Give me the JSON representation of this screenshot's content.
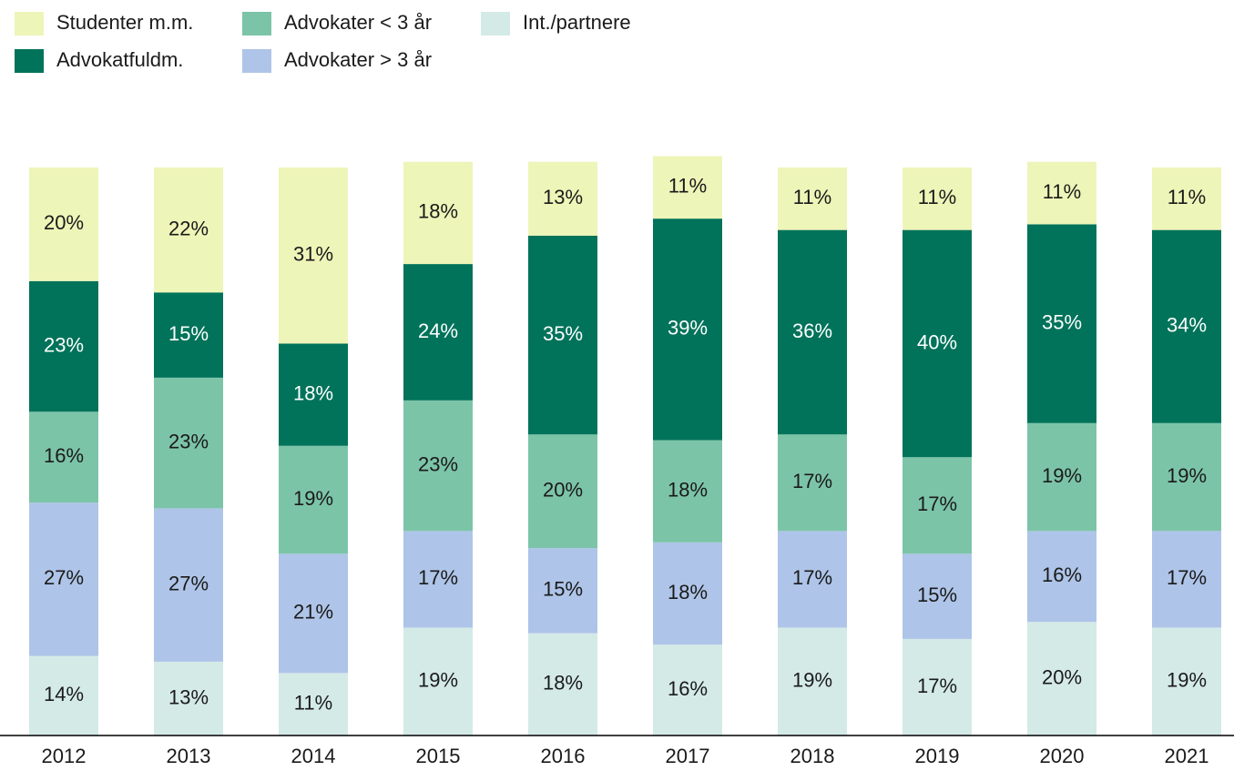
{
  "chart_data": {
    "type": "stacked_bar",
    "categories": [
      "2012",
      "2013",
      "2014",
      "2015",
      "2016",
      "2017",
      "2018",
      "2019",
      "2020",
      "2021"
    ],
    "series": [
      {
        "name": "Studenter m.m.",
        "color": "#eef5b8",
        "values": [
          20,
          22,
          31,
          18,
          13,
          11,
          11,
          11,
          11,
          11
        ]
      },
      {
        "name": "Advokatfuldm.",
        "color": "#00735a",
        "values": [
          23,
          15,
          18,
          24,
          35,
          39,
          36,
          40,
          35,
          34
        ]
      },
      {
        "name": "Advokater < 3 år",
        "color": "#7cc4a8",
        "values": [
          16,
          23,
          19,
          23,
          20,
          18,
          17,
          17,
          19,
          19
        ]
      },
      {
        "name": "Advokater > 3 år",
        "color": "#aec4e8",
        "values": [
          27,
          27,
          21,
          17,
          15,
          18,
          17,
          15,
          16,
          17
        ]
      },
      {
        "name": "Int./partnere",
        "color": "#d4eae7",
        "values": [
          14,
          13,
          11,
          19,
          18,
          16,
          19,
          17,
          20,
          19
        ]
      }
    ],
    "value_labels": [
      [
        "20%",
        "22%",
        "31%",
        "18%",
        "13%",
        "11%",
        "11%",
        "11%",
        "11%",
        "11%"
      ],
      [
        "23%",
        "15%",
        "18%",
        "24%",
        "35%",
        "39%",
        "36%",
        "40%",
        "35%",
        "34%"
      ],
      [
        "16%",
        "23%",
        "19%",
        "23%",
        "20%",
        "18%",
        "17%",
        "17%",
        "19%",
        "19%"
      ],
      [
        "27%",
        "27%",
        "21%",
        "17%",
        "15%",
        "18%",
        "17%",
        "15%",
        "16%",
        "17%"
      ],
      [
        "14%",
        "13%",
        "11%",
        "19%",
        "18%",
        "16%",
        "19%",
        "17%",
        "20%",
        "19%"
      ]
    ],
    "ylim": [
      0,
      100
    ]
  }
}
